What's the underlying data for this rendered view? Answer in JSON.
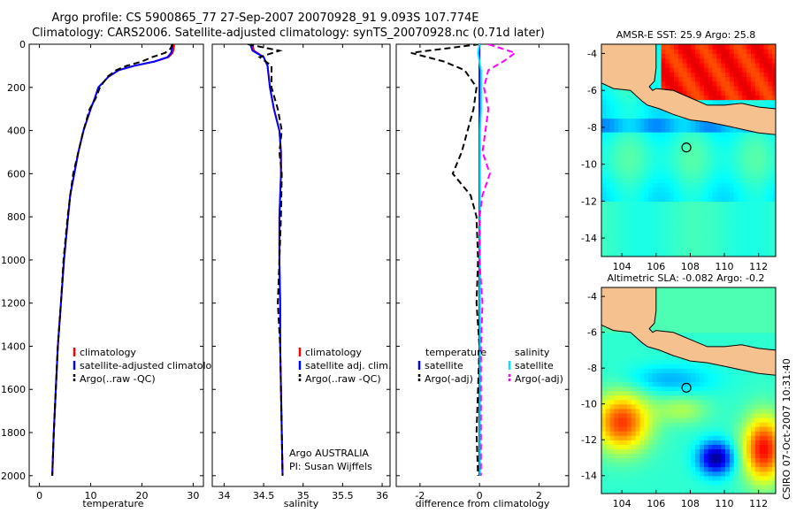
{
  "header": {
    "title_line1": "Argo profile: CS 5900865_77 27-Sep-2007 20070928_91 9.093S 107.774E",
    "title_line2": "Climatology: CARS2006. Satellite-adjusted climatology: synTS_20070928.nc (0.71d later)"
  },
  "footer": {
    "stamp": "CSIRO 07-Oct-2007 10:31:40"
  },
  "colors": {
    "climatology": "#ff0000",
    "satellite": "#0000ff",
    "argo": "#000000",
    "salinity_satellite": "#00e5ff",
    "salinity_argo": "#ff00ff",
    "land": "#f5c18e"
  },
  "chart_data": [
    {
      "type": "line",
      "title": "",
      "xlabel": "temperature",
      "ylabel": "",
      "xlim": [
        -2,
        32
      ],
      "ylim": [
        2050,
        0
      ],
      "xticks": [
        0,
        10,
        20,
        30
      ],
      "yticks": [
        0,
        200,
        400,
        600,
        800,
        1000,
        1200,
        1400,
        1600,
        1800,
        2000
      ],
      "depth": [
        0,
        20,
        40,
        60,
        80,
        100,
        120,
        150,
        200,
        250,
        300,
        400,
        500,
        600,
        700,
        800,
        1000,
        1200,
        1400,
        1600,
        1800,
        2000
      ],
      "series": [
        {
          "name": "climatology",
          "values": [
            26.3,
            26.2,
            26.0,
            25.2,
            22.5,
            18.5,
            15.5,
            13.5,
            11.5,
            10.8,
            10.0,
            8.6,
            7.6,
            6.8,
            6.0,
            5.6,
            4.8,
            4.2,
            3.6,
            3.2,
            2.8,
            2.5
          ]
        },
        {
          "name": "satellite-adjusted climatology",
          "values": [
            26.0,
            25.9,
            25.7,
            25.0,
            22.5,
            18.5,
            15.5,
            13.5,
            11.5,
            10.8,
            10.0,
            8.6,
            7.6,
            6.8,
            6.0,
            5.6,
            4.8,
            4.2,
            3.6,
            3.2,
            2.8,
            2.5
          ]
        },
        {
          "name": "Argo(..raw -QC)",
          "values": [
            25.9,
            25.6,
            24.5,
            22.0,
            20.0,
            17.0,
            15.0,
            13.3,
            11.8,
            11.0,
            9.8,
            8.6,
            7.6,
            6.6,
            6.0,
            5.5,
            4.7,
            4.2,
            3.6,
            3.2,
            2.8,
            2.5
          ]
        }
      ],
      "legend": [
        "climatology",
        "satellite-adjusted climatology",
        "Argo(..raw -QC)"
      ],
      "legend_position": "bottom-right"
    },
    {
      "type": "line",
      "xlabel": "salinity",
      "xlim": [
        33.85,
        36.1
      ],
      "ylim": [
        2050,
        0
      ],
      "xticks": [
        34,
        34.5,
        35,
        35.5,
        36
      ],
      "depth": [
        0,
        30,
        60,
        100,
        200,
        300,
        400,
        500,
        600,
        800,
        1000,
        1200,
        1400,
        1600,
        1800,
        2000
      ],
      "series": [
        {
          "name": "climatology",
          "values": [
            34.35,
            34.38,
            34.5,
            34.55,
            34.58,
            34.63,
            34.7,
            34.72,
            34.72,
            34.7,
            34.7,
            34.71,
            34.71,
            34.72,
            34.73,
            34.74
          ]
        },
        {
          "name": "satellite adj. clim.",
          "values": [
            34.33,
            34.36,
            34.5,
            34.55,
            34.58,
            34.63,
            34.7,
            34.72,
            34.72,
            34.7,
            34.7,
            34.71,
            34.71,
            34.72,
            34.73,
            34.74
          ]
        },
        {
          "name": "Argo(..raw -QC)",
          "values": [
            34.3,
            34.7,
            34.45,
            34.6,
            34.6,
            34.68,
            34.73,
            34.7,
            34.73,
            34.72,
            34.7,
            34.68,
            34.71,
            34.72,
            34.73,
            34.74
          ]
        }
      ],
      "legend": [
        "climatology",
        "satellite adj. clim.",
        "Argo(..raw -QC)"
      ],
      "annotation": [
        "Argo AUSTRALIA",
        "PI: Susan Wijffels"
      ]
    },
    {
      "type": "line",
      "xlabel": "difference from climatology",
      "xlim": [
        -2.8,
        3
      ],
      "ylim": [
        2050,
        0
      ],
      "xticks": [
        -2,
        0,
        2
      ],
      "depth": [
        0,
        40,
        80,
        120,
        200,
        300,
        400,
        500,
        600,
        700,
        800,
        1000,
        1200,
        1400,
        1600,
        1800,
        2000
      ],
      "series": [
        {
          "name": "temperature satellite",
          "values": [
            0.0,
            0.0,
            0.0,
            0.0,
            0.0,
            0.0,
            0.0,
            0.0,
            0.0,
            0.0,
            0.0,
            0.0,
            0.0,
            0.0,
            0.0,
            0.0,
            0.0
          ]
        },
        {
          "name": "temperature Argo(-adj)",
          "values": [
            0.0,
            -2.3,
            -1.2,
            -0.5,
            -0.1,
            -0.2,
            -0.4,
            -0.6,
            -0.9,
            -0.3,
            -0.1,
            -0.05,
            -0.1,
            0.0,
            -0.05,
            -0.1,
            -0.05
          ]
        },
        {
          "name": "salinity satellite",
          "values": [
            0.0,
            -0.05,
            0.0,
            0.05,
            0.05,
            0.05,
            0.02,
            0.02,
            0.02,
            0.02,
            0.02,
            0.02,
            0.02,
            0.02,
            0.02,
            0.02,
            0.02
          ]
        },
        {
          "name": "salinity Argo(-adj)",
          "values": [
            0.3,
            1.2,
            0.8,
            0.3,
            0.15,
            0.3,
            0.2,
            0.1,
            0.35,
            0.1,
            0.0,
            0.0,
            0.1,
            0.05,
            0.05,
            0.05,
            0.05
          ]
        }
      ],
      "legend_headers": [
        "temperature",
        "salinity"
      ],
      "legend": [
        "satellite",
        "Argo(-adj)",
        "satellite",
        "Argo(-adj)"
      ]
    },
    {
      "type": "heatmap",
      "title": "AMSR-E SST: 25.9 Argo: 25.8",
      "xlim": [
        102.8,
        113
      ],
      "ylim": [
        -15,
        -3.5
      ],
      "xticks": [
        104,
        106,
        108,
        110,
        112
      ],
      "yticks": [
        -4,
        -6,
        -8,
        -10,
        -12,
        -14
      ],
      "float_position": [
        107.774,
        -9.093
      ]
    },
    {
      "type": "heatmap",
      "title": "Altimetric SLA: -0.082 Argo: -0.2",
      "xlim": [
        102.8,
        113
      ],
      "ylim": [
        -15,
        -3.5
      ],
      "xticks": [
        104,
        106,
        108,
        110,
        112
      ],
      "yticks": [
        -4,
        -6,
        -8,
        -10,
        -12,
        -14
      ],
      "float_position": [
        107.774,
        -9.093
      ]
    }
  ]
}
